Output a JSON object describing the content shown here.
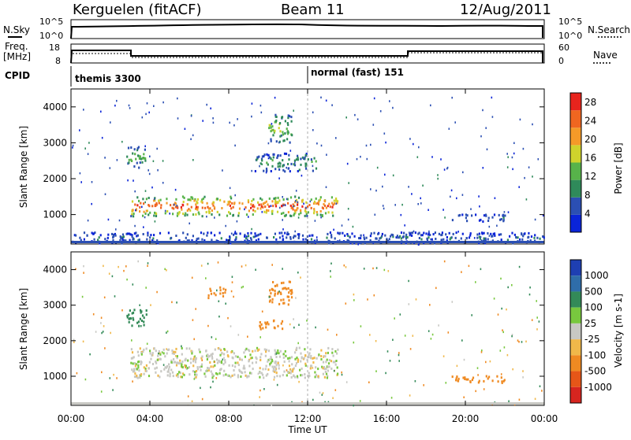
{
  "header": {
    "station": "Kerguelen (fitACF)",
    "beam": "Beam 11",
    "date": "12/Aug/2011"
  },
  "top_panels": {
    "nsky_label": "N.Sky",
    "nsky_ticks": [
      "10^5",
      "10^0"
    ],
    "nsearch_label": "N.Search",
    "nsearch_ticks": [
      "10^5",
      "10^0"
    ],
    "freq_label": [
      "Freq.",
      "[MHz]"
    ],
    "freq_ticks": [
      "18",
      "8"
    ],
    "nave_label": "Nave",
    "nave_ticks": [
      "60",
      "0"
    ],
    "cpid_label": "CPID",
    "cpid_segments": [
      {
        "text": "themis 3300",
        "start_hour": 0
      },
      {
        "text": "normal (fast) 151",
        "start_hour": 12
      }
    ]
  },
  "x_axis": {
    "title": "Time UT",
    "ticks": [
      "00:00",
      "04:00",
      "08:00",
      "12:00",
      "16:00",
      "20:00",
      "00:00"
    ]
  },
  "colors": {
    "power_scale": [
      "#0a24d8",
      "#2b4fb3",
      "#2f8a5a",
      "#57b34a",
      "#cfd32c",
      "#f59a28",
      "#f06620",
      "#e8241d"
    ],
    "velocity_scale": [
      "#1e3fb2",
      "#2f6da9",
      "#338a58",
      "#78c83e",
      "#c8c8c3",
      "#f0b84a",
      "#ef8a22",
      "#e65618",
      "#d7251f"
    ]
  },
  "chart_data": [
    {
      "type": "heatmap",
      "title": "",
      "xlabel": "Time UT",
      "ylabel": "Slant Range [km]",
      "xlim_hours": [
        0,
        24
      ],
      "ylim": [
        180,
        4500
      ],
      "y_ticks": [
        1000,
        2000,
        3000,
        4000
      ],
      "colorbar_label": "Power [dB]",
      "colorbar_ticks": [
        4,
        8,
        12,
        16,
        20,
        24,
        28
      ],
      "colorbar_range": [
        0,
        30
      ],
      "features": [
        {
          "name": "main_band",
          "t_start": 3.0,
          "t_end": 13.5,
          "range_km": [
            950,
            1500
          ],
          "value_db": 24
        },
        {
          "name": "echo_2500",
          "t_start": 2.8,
          "t_end": 3.8,
          "range_km": [
            2300,
            2900
          ],
          "value_db": 12
        },
        {
          "name": "echo_3400",
          "t_start": 10.0,
          "t_end": 11.2,
          "range_km": [
            3000,
            3800
          ],
          "value_db": 14
        },
        {
          "name": "echo_2400_late",
          "t_start": 9.3,
          "t_end": 12.4,
          "range_km": [
            2200,
            2700
          ],
          "value_db": 10
        },
        {
          "name": "near_range",
          "t_start": 0.0,
          "t_end": 24.0,
          "range_km": [
            200,
            500
          ],
          "value_db": 6
        },
        {
          "name": "late_echo",
          "t_start": 19.3,
          "t_end": 22.0,
          "range_km": [
            800,
            1000
          ],
          "value_db": 8
        }
      ]
    },
    {
      "type": "heatmap",
      "title": "",
      "xlabel": "Time UT",
      "ylabel": "Slant Range [km]",
      "xlim_hours": [
        0,
        24
      ],
      "ylim": [
        180,
        4500
      ],
      "y_ticks": [
        1000,
        2000,
        3000,
        4000
      ],
      "colorbar_label": "Velocity [m s-1]",
      "colorbar_ticks": [
        1000,
        500,
        100,
        25,
        -25,
        -100,
        -500,
        -1000
      ],
      "features": [
        {
          "name": "main_band",
          "t_start": 3.0,
          "t_end": 13.5,
          "range_km": [
            950,
            1800
          ],
          "value_ms": 0
        },
        {
          "name": "echo_2500",
          "t_start": 2.8,
          "t_end": 3.8,
          "range_km": [
            2400,
            2900
          ],
          "value_ms": 150
        },
        {
          "name": "echo_3400",
          "t_start": 10.0,
          "t_end": 11.2,
          "range_km": [
            3000,
            3700
          ],
          "value_ms": -300
        },
        {
          "name": "echo_2500_orange",
          "t_start": 9.5,
          "t_end": 10.7,
          "range_km": [
            2300,
            2600
          ],
          "value_ms": -300
        },
        {
          "name": "echo_3300_left",
          "t_start": 6.9,
          "t_end": 7.8,
          "range_km": [
            3200,
            3500
          ],
          "value_ms": -300
        },
        {
          "name": "late_echo",
          "t_start": 19.3,
          "t_end": 22.0,
          "range_km": [
            800,
            1000
          ],
          "value_ms": -200
        }
      ]
    }
  ]
}
